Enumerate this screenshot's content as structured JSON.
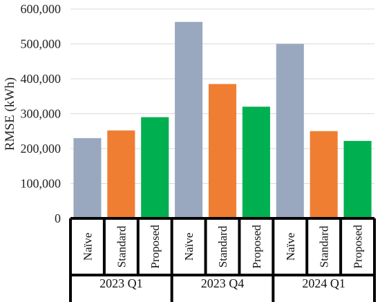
{
  "chart_data": {
    "type": "bar",
    "title": "",
    "xlabel": "",
    "ylabel": "RMSE (kWh)",
    "ylim": [
      0,
      600000
    ],
    "yticks": [
      "0",
      "100,000",
      "200,000",
      "300,000",
      "400,000",
      "500,000",
      "600,000"
    ],
    "grid": true,
    "legend": "none",
    "groups": [
      {
        "name": "2023 Q1",
        "bars": [
          {
            "label": "Naïve",
            "value": 230000,
            "color": "#9aa8bf"
          },
          {
            "label": "Standard",
            "value": 252000,
            "color": "#ef7e32"
          },
          {
            "label": "Proposed",
            "value": 290000,
            "color": "#00b050"
          }
        ]
      },
      {
        "name": "2023 Q4",
        "bars": [
          {
            "label": "Naïve",
            "value": 563000,
            "color": "#9aa8bf"
          },
          {
            "label": "Standard",
            "value": 385000,
            "color": "#ef7e32"
          },
          {
            "label": "Proposed",
            "value": 320000,
            "color": "#00b050"
          }
        ]
      },
      {
        "name": "2024 Q1",
        "bars": [
          {
            "label": "Naïve",
            "value": 500000,
            "color": "#9aa8bf"
          },
          {
            "label": "Standard",
            "value": 250000,
            "color": "#ef7e32"
          },
          {
            "label": "Proposed",
            "value": 222000,
            "color": "#00b050"
          }
        ]
      }
    ]
  }
}
